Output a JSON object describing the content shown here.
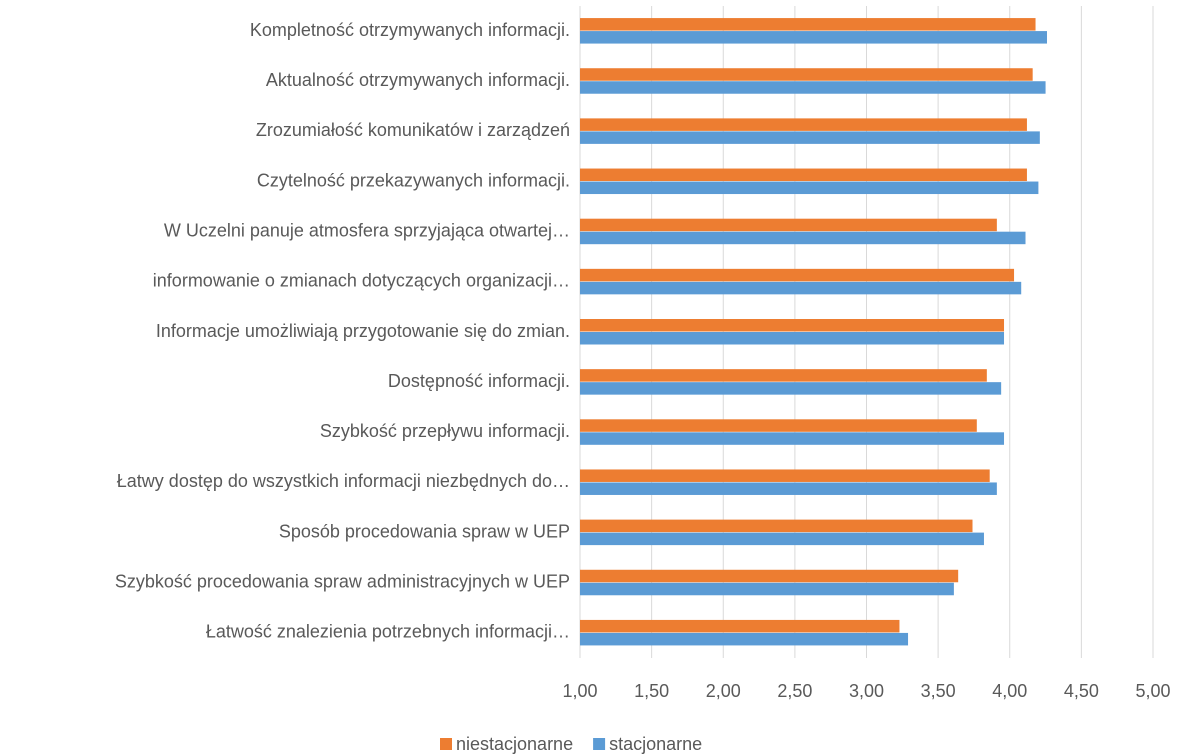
{
  "chart_data": {
    "type": "bar",
    "orientation": "horizontal",
    "categories": [
      "Kompletność otrzymywanych informacji.",
      "Aktualność otrzymywanych informacji.",
      "Zrozumiałość komunikatów i zarządzeń",
      "Czytelność przekazywanych informacji.",
      "W Uczelni panuje atmosfera sprzyjająca otwartej…",
      "informowanie o zmianach dotyczących organizacji…",
      "Informacje umożliwiają  przygotowanie się do  zmian.",
      "Dostępność informacji.",
      "Szybkość przepływu informacji.",
      "Łatwy dostęp do wszystkich informacji niezbędnych do…",
      "Sposób procedowania spraw w UEP",
      "Szybkość procedowania spraw administracyjnych w UEP",
      "Łatwość znalezienia potrzebnych informacji…"
    ],
    "series": [
      {
        "name": "niestacjonarne",
        "color": "#ed7d31",
        "values": [
          4.18,
          4.16,
          4.12,
          4.12,
          3.91,
          4.03,
          3.96,
          3.84,
          3.77,
          3.86,
          3.74,
          3.64,
          3.23
        ]
      },
      {
        "name": "stacjonarne",
        "color": "#5b9bd5",
        "values": [
          4.26,
          4.25,
          4.21,
          4.2,
          4.11,
          4.08,
          3.96,
          3.94,
          3.96,
          3.91,
          3.82,
          3.61,
          3.29
        ]
      }
    ],
    "xlim": [
      1,
      5
    ],
    "xticks": [
      {
        "value": 1,
        "label": "1,00"
      },
      {
        "value": 1.5,
        "label": "1,50"
      },
      {
        "value": 2,
        "label": "2,00"
      },
      {
        "value": 2.5,
        "label": "2,50"
      },
      {
        "value": 3,
        "label": "3,00"
      },
      {
        "value": 3.5,
        "label": "3,50"
      },
      {
        "value": 4,
        "label": "4,00"
      },
      {
        "value": 4.5,
        "label": "4,50"
      },
      {
        "value": 5,
        "label": "5,00"
      }
    ],
    "grid": true,
    "legend": "bottom"
  }
}
